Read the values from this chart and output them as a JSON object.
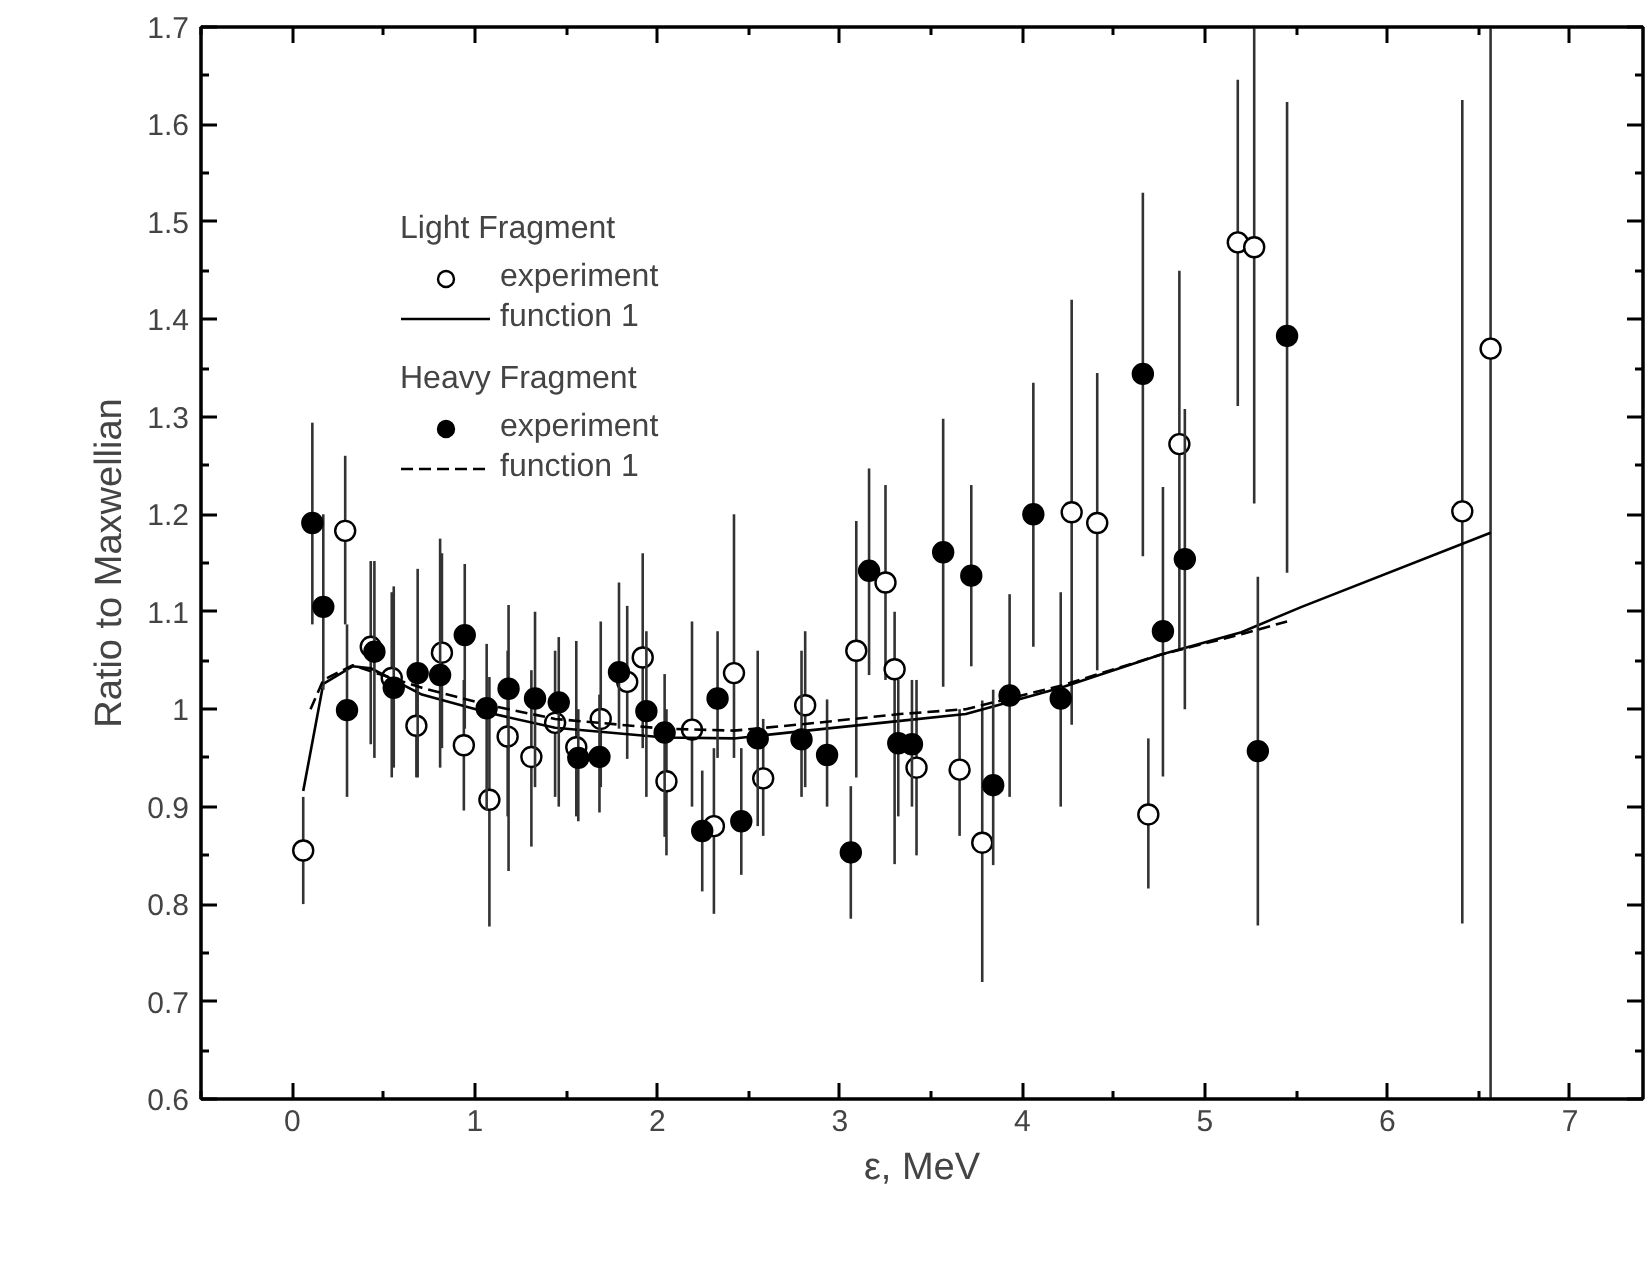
{
  "chart_data": {
    "type": "scatter",
    "xlabel": "ε, MeV",
    "ylabel": "Ratio to Maxwellian",
    "legend_title": [
      "Light Fragment",
      "Heavy Fragment"
    ],
    "xlim": [
      -0.5,
      7.4
    ],
    "ylim": [
      0.6,
      1.7
    ],
    "xticks": [
      {
        "value": -0.5,
        "label": null
      },
      0,
      {
        "value": 0.5,
        "label": null
      },
      1,
      {
        "value": 1.5,
        "label": null
      },
      2,
      {
        "value": 2.5,
        "label": null
      },
      3,
      {
        "value": 3.5,
        "label": null
      },
      4,
      {
        "value": 4.5,
        "label": null
      },
      5,
      {
        "value": 5.5,
        "label": null
      },
      6,
      {
        "value": 6.5,
        "label": null
      },
      7
    ],
    "yticks": [
      0.6,
      {
        "value": 0.65,
        "label": null
      },
      0.7,
      {
        "value": 0.75,
        "label": null
      },
      0.8,
      {
        "value": 0.85,
        "label": null
      },
      0.9,
      {
        "value": 0.95,
        "label": null
      },
      1.0,
      {
        "value": 1.05,
        "label": null
      },
      1.1,
      {
        "value": 1.15,
        "label": null
      },
      1.2,
      {
        "value": 1.25,
        "label": null
      },
      1.3,
      {
        "value": 1.35,
        "label": null
      },
      1.4,
      {
        "value": 1.45,
        "label": null
      },
      1.5,
      {
        "value": 1.55,
        "label": null
      },
      1.6,
      {
        "value": 1.65,
        "label": null
      },
      1.7
    ],
    "grid": false,
    "legend": "top left",
    "series": [
      {
        "name": "experiment",
        "marker": "circle",
        "color": "#ffffff",
        "x": [
          0.06,
          0.29,
          0.43,
          0.545,
          0.68,
          0.82,
          0.94,
          1.08,
          1.18,
          1.31,
          1.44,
          1.556,
          1.69,
          1.835,
          1.92,
          2.05,
          2.19,
          2.31,
          2.42,
          2.58,
          2.81,
          3.09,
          3.25,
          3.3,
          3.42,
          3.656,
          3.78,
          4.27,
          4.41,
          4.69,
          4.86,
          5.18,
          5.27,
          6.41,
          6.565
        ],
        "values": [
          0.855,
          1.183,
          1.064,
          1.032,
          0.983,
          1.058,
          0.963,
          0.907,
          0.972,
          0.951,
          0.986,
          0.961,
          0.99,
          1.028,
          1.053,
          0.926,
          0.979,
          0.88,
          1.037,
          0.929,
          1.004,
          1.06,
          1.13,
          1.041,
          0.94,
          0.938,
          0.863,
          1.202,
          1.191,
          0.892,
          1.272,
          1.479,
          1.474,
          1.203,
          1.37
        ],
        "errors": [
          [
            0.8,
            0.91
          ],
          [
            1.087,
            1.26
          ],
          [
            0.964,
            1.152
          ],
          [
            0.93,
            1.12
          ],
          [
            0.93,
            1.04
          ],
          [
            0.96,
            1.16
          ],
          [
            0.896,
            1.03
          ],
          [
            0.777,
            1.033
          ],
          [
            0.89,
            1.06
          ],
          [
            0.859,
            1.04
          ],
          [
            0.91,
            1.06
          ],
          [
            0.89,
            1.07
          ],
          [
            0.92,
            1.09
          ],
          [
            0.949,
            1.106
          ],
          [
            0.96,
            1.16
          ],
          [
            0.85,
            1.0
          ],
          [
            0.9,
            1.09
          ],
          [
            0.79,
            0.96
          ],
          [
            0.95,
            1.2
          ],
          [
            0.87,
            0.99
          ],
          [
            0.92,
            1.08
          ],
          [
            0.93,
            1.193
          ],
          [
            1.03,
            1.23
          ],
          [
            0.841,
            1.1
          ],
          [
            0.85,
            1.03
          ],
          [
            0.87,
            1.0
          ],
          [
            0.72,
            1.009
          ],
          [
            0.984,
            1.42
          ],
          [
            1.04,
            1.345
          ],
          [
            0.816,
            0.97
          ],
          [
            1.06,
            1.45
          ],
          [
            1.311,
            1.646
          ],
          [
            1.211,
            1.7
          ],
          [
            0.78,
            1.625
          ],
          [
            0.6,
            1.7
          ]
        ]
      },
      {
        "name": "function 1",
        "type": "line",
        "marker": "none",
        "line_style": "solid",
        "color": "#000000",
        "x": [
          0.06,
          0.17,
          0.33,
          0.43,
          0.71,
          1.08,
          1.44,
          2.04,
          2.42,
          2.82,
          3.33,
          3.69,
          4.21,
          4.76,
          5.2,
          5.53,
          6.565
        ],
        "values": [
          0.916,
          1.026,
          1.044,
          1.042,
          1.015,
          0.996,
          0.981,
          0.971,
          0.97,
          0.978,
          0.988,
          0.995,
          1.022,
          1.056,
          1.079,
          1.105,
          1.181
        ]
      },
      {
        "name": "experiment",
        "marker": "circle",
        "color": "#000000",
        "x": [
          0.11,
          0.17,
          0.3,
          0.45,
          0.556,
          0.687,
          0.81,
          0.945,
          1.065,
          1.185,
          1.33,
          1.46,
          1.567,
          1.683,
          1.79,
          1.94,
          2.04,
          2.246,
          2.33,
          2.46,
          2.55,
          2.79,
          2.93,
          3.06,
          3.16,
          3.32,
          3.395,
          3.566,
          3.72,
          3.84,
          3.93,
          4.06,
          4.21,
          4.66,
          4.77,
          4.89,
          5.29,
          5.45
        ],
        "values": [
          1.191,
          1.105,
          0.999,
          1.059,
          1.022,
          1.037,
          1.035,
          1.076,
          1.001,
          1.021,
          1.011,
          1.007,
          0.95,
          0.951,
          1.038,
          0.998,
          0.976,
          0.875,
          1.011,
          0.885,
          0.97,
          0.969,
          0.953,
          0.853,
          1.142,
          0.965,
          0.964,
          1.161,
          1.137,
          0.922,
          1.014,
          1.2,
          1.011,
          1.344,
          1.08,
          1.154,
          0.957,
          1.383
        ],
        "errors": [
          [
            1.087,
            1.294
          ],
          [
            1.02,
            1.2
          ],
          [
            0.91,
            1.087
          ],
          [
            0.95,
            1.152
          ],
          [
            0.94,
            1.126
          ],
          [
            0.93,
            1.144
          ],
          [
            0.94,
            1.175
          ],
          [
            0.98,
            1.149
          ],
          [
            0.896,
            1.067
          ],
          [
            0.834,
            1.107
          ],
          [
            0.92,
            1.1
          ],
          [
            0.9,
            1.074
          ],
          [
            0.885,
            1.0
          ],
          [
            0.894,
            1.015
          ],
          [
            0.98,
            1.13
          ],
          [
            0.91,
            1.08
          ],
          [
            0.869,
            1.036
          ],
          [
            0.813,
            0.937
          ],
          [
            0.95,
            1.08
          ],
          [
            0.83,
            0.96
          ],
          [
            0.88,
            1.06
          ],
          [
            0.91,
            1.06
          ],
          [
            0.9,
            1.01
          ],
          [
            0.785,
            0.921
          ],
          [
            1.035,
            1.247
          ],
          [
            0.89,
            1.03
          ],
          [
            0.9,
            1.03
          ],
          [
            1.023,
            1.298
          ],
          [
            1.044,
            1.23
          ],
          [
            0.84,
            1.02
          ],
          [
            0.91,
            1.118
          ],
          [
            1.064,
            1.335
          ],
          [
            0.9,
            1.12
          ],
          [
            1.157,
            1.53
          ],
          [
            0.931,
            1.228
          ],
          [
            1.0,
            1.308
          ],
          [
            0.778,
            1.136
          ],
          [
            1.14,
            1.623
          ]
        ]
      },
      {
        "name": "function 1",
        "type": "line",
        "marker": "none",
        "line_style": "dashed",
        "color": "#000000",
        "x": [
          0.1,
          0.17,
          0.33,
          0.71,
          1.08,
          1.44,
          2.04,
          2.42,
          2.82,
          3.33,
          3.69,
          4.21,
          4.76,
          5.2,
          5.45
        ],
        "values": [
          1.0,
          1.03,
          1.045,
          1.022,
          1.004,
          0.99,
          0.98,
          0.978,
          0.985,
          0.995,
          1.0,
          1.024,
          1.056,
          1.077,
          1.09
        ]
      }
    ]
  }
}
